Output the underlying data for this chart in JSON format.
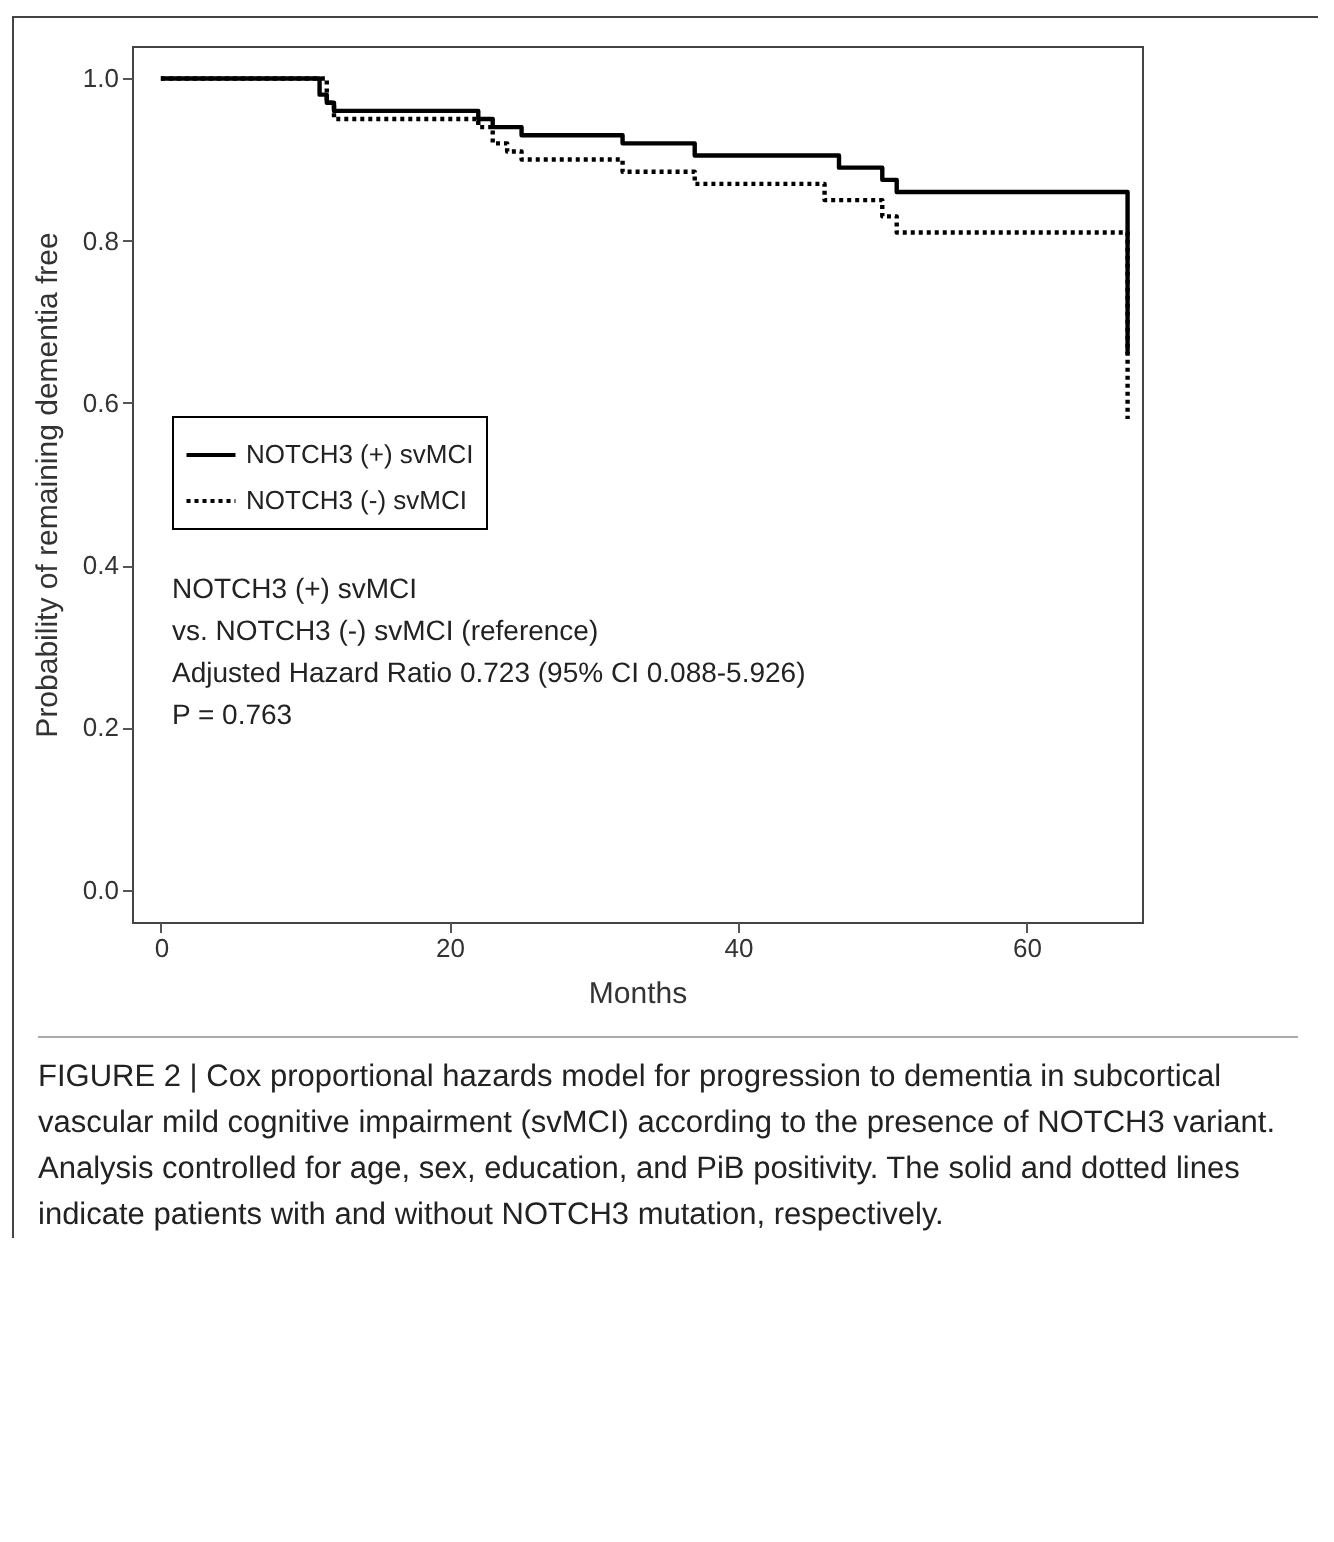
{
  "chart_data": {
    "type": "step",
    "xlabel": "Months",
    "ylabel": "Probability of remaining dementia free",
    "xlim": [
      -2,
      68
    ],
    "xticks": [
      0,
      20,
      40,
      60
    ],
    "ylim": [
      -0.04,
      1.04
    ],
    "yticks": [
      {
        "value": 0,
        "label": "0.0"
      },
      {
        "value": 0.2,
        "label": "0.2"
      },
      {
        "value": 0.4,
        "label": "0.4"
      },
      {
        "value": 0.6,
        "label": "0.6"
      },
      {
        "value": 0.8,
        "label": "0.8"
      },
      {
        "value": 1,
        "label": "1.0"
      }
    ],
    "grid": false,
    "legend": "left",
    "marker": "none",
    "series": [
      {
        "name": "NOTCH3 (+) svMCI",
        "color": "#000000",
        "line_style": "solid",
        "x": [
          0,
          11,
          11.5,
          12,
          22,
          23,
          25,
          32,
          37,
          47,
          50,
          51,
          67
        ],
        "values": [
          1,
          0.98,
          0.97,
          0.96,
          0.95,
          0.94,
          0.93,
          0.92,
          0.905,
          0.89,
          0.875,
          0.86,
          0.66
        ]
      },
      {
        "name": "NOTCH3 (-) svMCI",
        "color": "#000000",
        "line_style": "dotted",
        "x": [
          0,
          11.5,
          12,
          22,
          23,
          24,
          25,
          32,
          37,
          46,
          50,
          51,
          67
        ],
        "values": [
          1,
          0.97,
          0.95,
          0.94,
          0.92,
          0.91,
          0.9,
          0.885,
          0.87,
          0.85,
          0.83,
          0.81,
          0.58
        ]
      }
    ],
    "annotations": [
      "NOTCH3  (+) svMCI",
      "vs. NOTCH3  (-) svMCI  (reference)",
      "Adjusted Hazard Ratio 0.723  (95% CI 0.088-5.926)",
      "P = 0.763",
      "FIGURE 2 | Cox proportional hazards model for progression to dementia in subcortical vascular mild cognitive impairment (svMCI) according to the presence of NOTCH3 variant. Analysis controlled for age, sex, education, and PiB positivity. The solid and dotted lines indicate patients with and without NOTCH3 mutation, respectively."
    ]
  }
}
